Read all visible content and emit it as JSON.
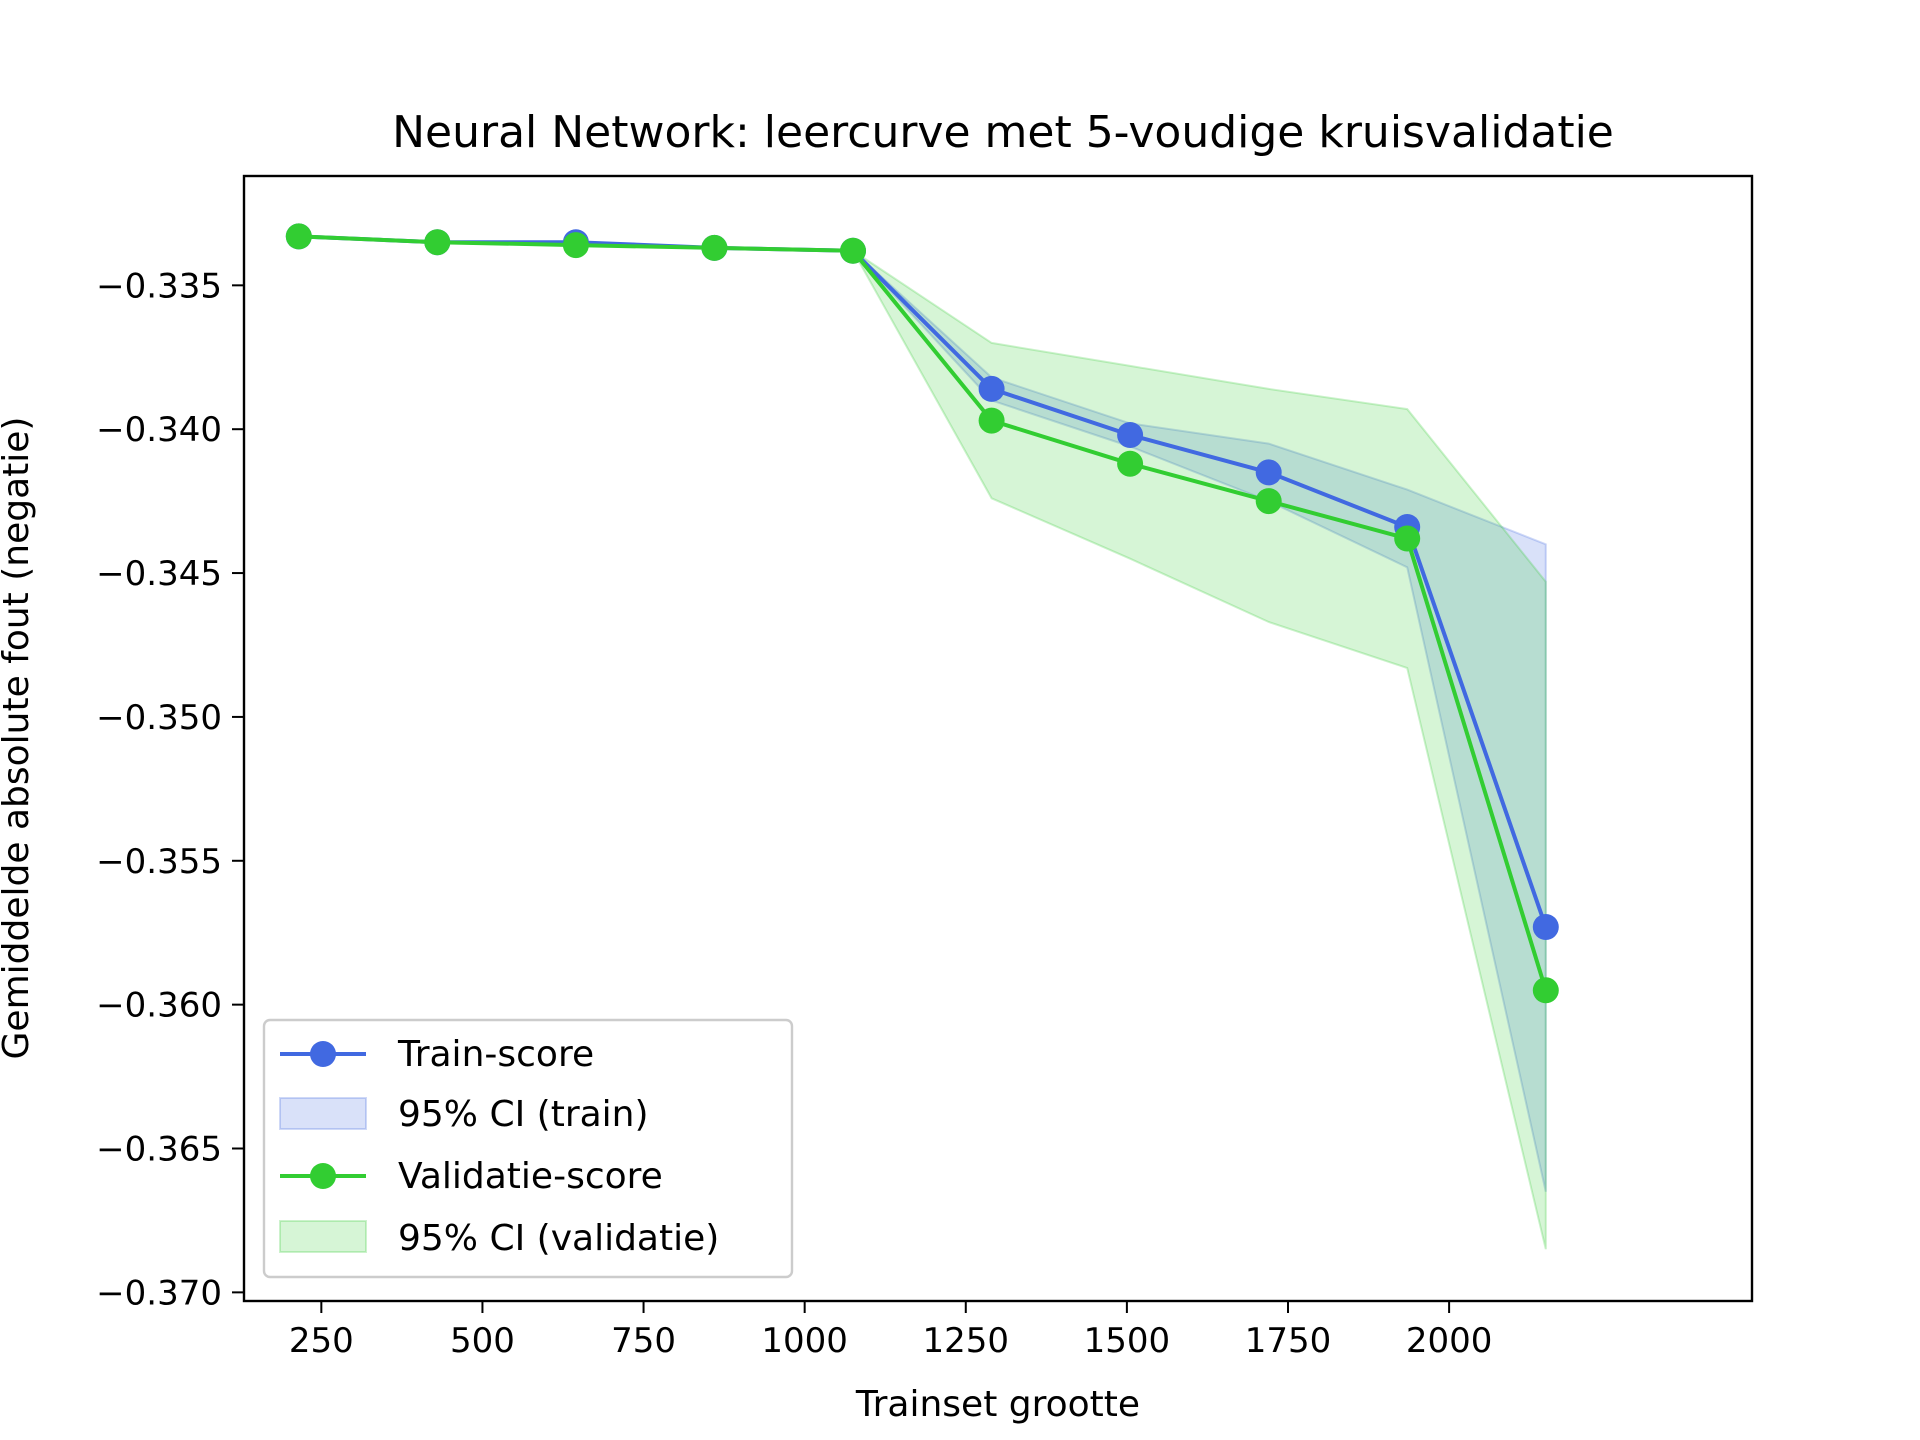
{
  "chart_data": {
    "type": "line",
    "title": "Neural Network: leercurve met 5-voudige kruisvalidatie",
    "xlabel": "Trainset grootte",
    "ylabel": "Gemiddelde absolute fout (negatie)",
    "xlim": [
      130,
      2470
    ],
    "ylim": [
      -0.3703,
      -0.3312
    ],
    "xticks": [
      250,
      500,
      750,
      1000,
      1250,
      1500,
      1750,
      2000
    ],
    "xtick_labels": [
      "250",
      "500",
      "750",
      "1000",
      "1250",
      "1500",
      "1750",
      "2000"
    ],
    "yticks": [
      -0.335,
      -0.34,
      -0.345,
      -0.35,
      -0.355,
      -0.36,
      -0.365,
      -0.37
    ],
    "ytick_labels": [
      "−0.335",
      "−0.340",
      "−0.345",
      "−0.350",
      "−0.355",
      "−0.360",
      "−0.365",
      "−0.370"
    ],
    "grid": false,
    "legend_position": "lower-left",
    "x": [
      215,
      430,
      645,
      860,
      1075,
      1290,
      1505,
      1720,
      1935,
      2150
    ],
    "series": [
      {
        "name": "Train-score",
        "color": "#4169e1",
        "values": [
          -0.3333,
          -0.3335,
          -0.3335,
          -0.3337,
          -0.3338,
          -0.3386,
          -0.3402,
          -0.3415,
          -0.3434,
          -0.3573
        ],
        "ci_name": "95% CI (train)",
        "ci_lower": [
          -0.3333,
          -0.3335,
          -0.3335,
          -0.3337,
          -0.3338,
          -0.339,
          -0.3406,
          -0.3425,
          -0.3448,
          -0.3665
        ],
        "ci_upper": [
          -0.3333,
          -0.3335,
          -0.3335,
          -0.3337,
          -0.3338,
          -0.3382,
          -0.3398,
          -0.3405,
          -0.3421,
          -0.344
        ]
      },
      {
        "name": "Validatie-score",
        "color": "#32cd32",
        "values": [
          -0.3333,
          -0.3335,
          -0.3336,
          -0.3337,
          -0.3338,
          -0.3397,
          -0.3412,
          -0.3425,
          -0.3438,
          -0.3595
        ],
        "ci_name": "95% CI (validatie)",
        "ci_lower": [
          -0.3333,
          -0.3335,
          -0.3336,
          -0.3337,
          -0.3338,
          -0.3424,
          -0.3445,
          -0.3467,
          -0.3483,
          -0.3685
        ],
        "ci_upper": [
          -0.3333,
          -0.3335,
          -0.3336,
          -0.3337,
          -0.3338,
          -0.337,
          -0.3378,
          -0.3386,
          -0.3393,
          -0.3453
        ]
      }
    ]
  }
}
